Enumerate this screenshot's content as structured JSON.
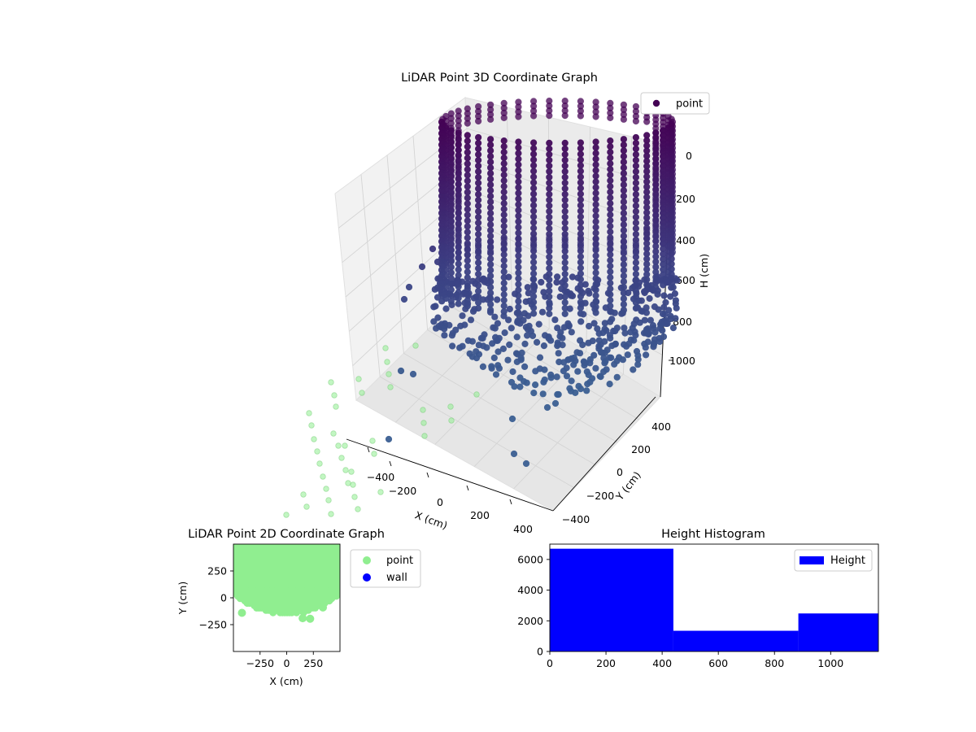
{
  "colors": {
    "point3d_top": "#440154",
    "point3d_mid": "#3b3f83",
    "point3d_low": "#3b5f92",
    "ghost_points": "#90ee90",
    "point2d": "#90ee90",
    "wall2d": "#0000ff",
    "histogram": "#0000ff",
    "pane": "#f2f2f2",
    "grid": "#d4d4d4"
  },
  "chart_data": [
    {
      "type": "scatter",
      "projection": "3d",
      "title": "LiDAR Point 3D Coordinate Graph",
      "xlabel": "X (cm)",
      "ylabel": "Y (cm)",
      "zlabel": "H (cm)",
      "xlim": [
        -500,
        500
      ],
      "ylim": [
        -500,
        500
      ],
      "zlim": [
        0,
        1150
      ],
      "z_inverted": true,
      "x_ticks": [
        "−400",
        "−200",
        "0",
        "200",
        "400"
      ],
      "y_ticks": [
        "−400",
        "−200",
        "0",
        "200",
        "400"
      ],
      "z_ticks": [
        "0",
        "200",
        "400",
        "600",
        "800",
        "1000"
      ],
      "legend": {
        "entries": [
          "point"
        ],
        "placement": "upper-right"
      },
      "series": [
        {
          "name": "point",
          "shape": "cylinder-with-bowl-bottom",
          "radius": 400,
          "wall_height_range": [
            0,
            600
          ],
          "bowl_depth": 1100
        }
      ],
      "grid": true
    },
    {
      "type": "scatter",
      "title": "LiDAR Point 2D Coordinate Graph",
      "xlabel": "X (cm)",
      "ylabel": "Y (cm)",
      "xlim": [
        -500,
        500
      ],
      "ylim": [
        -500,
        500
      ],
      "x_ticks": [
        "−250",
        "0",
        "250"
      ],
      "y_ticks": [
        "250",
        "0",
        "−250"
      ],
      "legend": {
        "entries": [
          "point",
          "wall"
        ],
        "placement": "outside-right"
      },
      "series": [
        {
          "name": "point",
          "region_y_min": -150,
          "region_y_max": 500
        },
        {
          "name": "wall",
          "values": []
        }
      ]
    },
    {
      "type": "bar",
      "subtype": "histogram",
      "title": "Height Histogram",
      "xlim": [
        0,
        1170
      ],
      "ylim": [
        0,
        7000
      ],
      "x_ticks": [
        "0",
        "200",
        "400",
        "600",
        "800",
        "1000"
      ],
      "y_ticks": [
        "0",
        "2000",
        "4000",
        "6000"
      ],
      "legend": {
        "entries": [
          "Height"
        ],
        "placement": "upper-right"
      },
      "bins": [
        {
          "x0": 0,
          "x1": 440,
          "count": 6700
        },
        {
          "x0": 440,
          "x1": 885,
          "count": 1350
        },
        {
          "x0": 885,
          "x1": 1170,
          "count": 2480
        }
      ]
    }
  ]
}
